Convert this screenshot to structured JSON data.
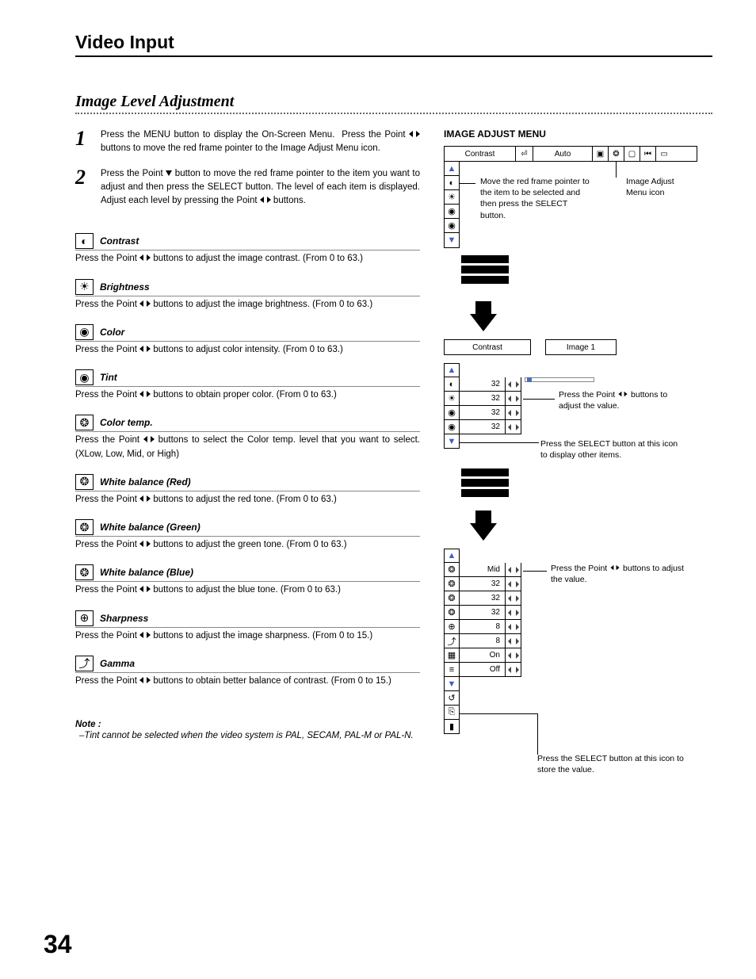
{
  "page": {
    "section": "Video Input",
    "title": "Image Level  Adjustment",
    "number": "34"
  },
  "steps": {
    "1": "Press the MENU button to display the On-Screen Menu.  Press the Point ◀▶ buttons to move the red frame pointer to the Image Adjust Menu icon.",
    "2": "Press the Point ▼ button to move the red frame pointer to the item you want to adjust and then press the SELECT button.  The level of each item is displayed.  Adjust each level by pressing the Point ◀▶ buttons."
  },
  "items": [
    {
      "glyph": "◐",
      "title": "Contrast",
      "desc": "Press the Point ◀▶ buttons to adjust the image contrast.  (From 0 to 63.)"
    },
    {
      "glyph": "☀",
      "title": "Brightness",
      "desc": "Press the Point ◀▶ buttons to adjust the image brightness.  (From 0 to 63.)"
    },
    {
      "glyph": "◉",
      "title": "Color",
      "desc": "Press the Point ◀▶ buttons to adjust color intensity.  (From 0 to 63.)"
    },
    {
      "glyph": "◉",
      "title": "Tint",
      "desc": "Press the Point ◀▶ buttons to obtain proper color.  (From 0 to 63.)"
    },
    {
      "glyph": "❂",
      "title": "Color temp.",
      "desc": "Press the Point ◀▶ buttons to select the Color temp. level that you want to select.  (XLow, Low, Mid, or High)"
    },
    {
      "glyph": "❂",
      "title": "White balance  (Red)",
      "desc": "Press the Point ◀▶ buttons to adjust the red tone.  (From 0 to 63.)"
    },
    {
      "glyph": "❂",
      "title": "White balance  (Green)",
      "desc": "Press the Point ◀▶ buttons to adjust the green tone.  (From 0 to 63.)"
    },
    {
      "glyph": "❂",
      "title": "White balance  (Blue)",
      "desc": "Press the Point ◀▶ buttons to adjust the blue tone.  (From 0 to 63.)"
    },
    {
      "glyph": "⊕",
      "title": "Sharpness",
      "desc": "Press the Point ◀▶ buttons to adjust the image sharpness.  (From 0 to  15.)"
    },
    {
      "glyph": "⤴",
      "title": "Gamma",
      "desc": "Press the Point ◀▶ buttons to obtain better balance of contrast.  (From 0 to 15.)"
    }
  ],
  "notes": {
    "head": "Note :",
    "body": "–Tint cannot be selected when the video system is PAL, SECAM, PAL-M or PAL-N."
  },
  "menu": {
    "heading": "IMAGE ADJUST MENU",
    "topbar": {
      "label": "Contrast",
      "mode": "Auto"
    },
    "callout1": "Move the red frame pointer to the item to be selected and then press the SELECT button.",
    "callout2": "Image Adjust Menu icon",
    "sub": {
      "label": "Contrast",
      "image": "Image 1"
    },
    "vals1": [
      {
        "g": "◐",
        "v": "32",
        "slider": 0.02
      },
      {
        "g": "☀",
        "v": "32"
      },
      {
        "g": "◉",
        "v": "32"
      },
      {
        "g": "◉",
        "v": "32"
      }
    ],
    "callout3": "Press the Point ◀▶ buttons to adjust the value.",
    "callout4": "Press the SELECT button at this icon to display other items.",
    "vals2": [
      {
        "g": "❂",
        "v": "Mid"
      },
      {
        "g": "❂",
        "v": "32"
      },
      {
        "g": "❂",
        "v": "32"
      },
      {
        "g": "❂",
        "v": "32"
      },
      {
        "g": "⊕",
        "v": "8"
      },
      {
        "g": "⤴",
        "v": "8"
      },
      {
        "g": "▦",
        "v": "On"
      },
      {
        "g": "≡",
        "v": "Off"
      }
    ],
    "callout5": "Press the Point ◀▶ buttons to adjust the value.",
    "callout6": "Press the SELECT button at this icon to store the value."
  }
}
